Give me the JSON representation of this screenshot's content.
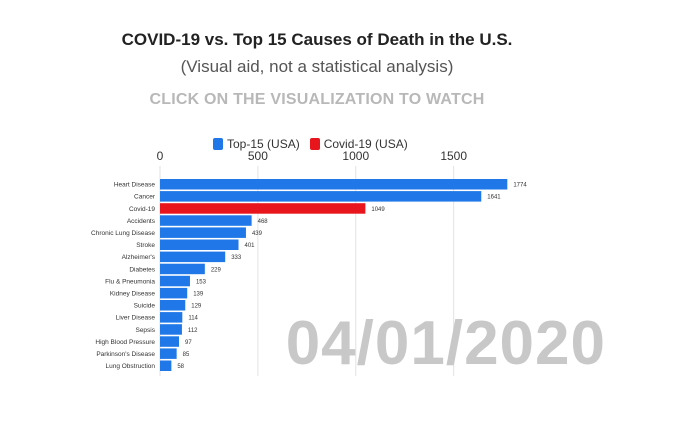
{
  "header": {
    "title": "COVID-19 vs. Top 15 Causes of Death in the U.S.",
    "subtitle": "(Visual aid, not a statistical analysis)",
    "cta": "CLICK ON THE VISUALIZATION TO WATCH"
  },
  "date_label": "04/01/2020",
  "colors": {
    "top15": "#1f77e8",
    "covid": "#e8161c",
    "grid": "#e2e2e2"
  },
  "chart_data": {
    "type": "bar",
    "orientation": "horizontal",
    "title": "COVID-19 vs. Top 15 Causes of Death in the U.S.",
    "subtitle": "(Visual aid, not a statistical analysis)",
    "xlim": [
      0,
      1800
    ],
    "x_ticks": [
      0,
      500,
      1000,
      1500
    ],
    "grid": true,
    "legend_position": "top",
    "legend": [
      {
        "name": "Top-15 (USA)",
        "color": "#1f77e8"
      },
      {
        "name": "Covid-19 (USA)",
        "color": "#e8161c"
      }
    ],
    "categories": [
      "Heart Disease",
      "Cancer",
      "Covid-19",
      "Accidents",
      "Chronic Lung Disease",
      "Stroke",
      "Alzheimer's",
      "Diabetes",
      "Flu & Pneumonia",
      "Kidney Disease",
      "Suicide",
      "Liver Disease",
      "Sepsis",
      "High Blood Pressure",
      "Parkinson's Disease",
      "Lung Obstruction"
    ],
    "values": [
      1774,
      1641,
      1049,
      468,
      439,
      401,
      333,
      229,
      153,
      139,
      129,
      114,
      112,
      97,
      85,
      58
    ],
    "groups": [
      "Top-15 (USA)",
      "Top-15 (USA)",
      "Covid-19 (USA)",
      "Top-15 (USA)",
      "Top-15 (USA)",
      "Top-15 (USA)",
      "Top-15 (USA)",
      "Top-15 (USA)",
      "Top-15 (USA)",
      "Top-15 (USA)",
      "Top-15 (USA)",
      "Top-15 (USA)",
      "Top-15 (USA)",
      "Top-15 (USA)",
      "Top-15 (USA)",
      "Top-15 (USA)"
    ]
  }
}
